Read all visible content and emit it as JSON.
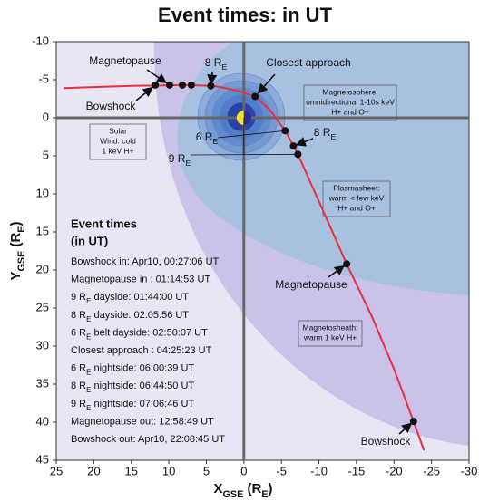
{
  "chart_data": {
    "type": "trajectory",
    "title": "Event times: in UT",
    "xlabel": [
      {
        "text": "X"
      },
      {
        "text": "GSE",
        "sub": true
      },
      {
        "text": " (R"
      },
      {
        "text": "E",
        "sub": true
      },
      {
        "text": ")"
      }
    ],
    "ylabel": [
      {
        "text": "Y"
      },
      {
        "text": "GSE",
        "sub": true
      },
      {
        "text": " (R"
      },
      {
        "text": "E",
        "sub": true
      },
      {
        "text": ")"
      }
    ],
    "xlim": [
      25,
      -30
    ],
    "ylim": [
      -10,
      45
    ],
    "xticks": [
      25,
      20,
      15,
      10,
      5,
      0,
      -5,
      -10,
      -15,
      -20,
      -25,
      -30
    ],
    "yticks": [
      -10,
      -5,
      0,
      5,
      10,
      15,
      20,
      25,
      30,
      35,
      40,
      45
    ],
    "trajectory": {
      "color": "#e8303a",
      "x": [
        24,
        15,
        8,
        4,
        1,
        -1.5,
        -3.5,
        -5.5,
        -7.2,
        -10,
        -13.7,
        -17,
        -20,
        -22.6,
        -24
      ],
      "y": [
        -3.9,
        -4.2,
        -4.3,
        -4.2,
        -3.6,
        -2.8,
        -1,
        1.7,
        4.8,
        11,
        19.2,
        26,
        33,
        39.9,
        43.7
      ]
    },
    "events": {
      "color": "#111111",
      "x": [
        11.8,
        9.9,
        8.2,
        7.0,
        4.4,
        -1.5,
        -5.5,
        -6.6,
        -7.2,
        -13.7,
        -22.6
      ],
      "y": [
        -4.3,
        -4.3,
        -4.3,
        -4.3,
        -4.2,
        -2.8,
        1.7,
        3.7,
        4.8,
        19.2,
        39.9
      ]
    },
    "regions": [
      {
        "lines": [
          "Solar",
          "Wind: cold",
          "1 keV H+"
        ]
      },
      {
        "lines": [
          "Magnetosphere:",
          "omnidirectional 1-10s keV",
          "H+ and O+"
        ]
      },
      {
        "lines": [
          "Plasmasheet:",
          "warm < few keV",
          "H+ and O+"
        ]
      },
      {
        "lines": [
          "Magnetosheath:",
          "warm 1 keV H+"
        ]
      }
    ],
    "annotations": [
      [
        {
          "text": "Magnetopause"
        }
      ],
      [
        {
          "text": "Bowshock"
        }
      ],
      [
        {
          "text": "8 R"
        },
        {
          "text": "E",
          "sub": true
        }
      ],
      [
        {
          "text": "Closest approach"
        }
      ],
      [
        {
          "text": "6 R"
        },
        {
          "text": "E",
          "sub": true
        }
      ],
      [
        {
          "text": "8 R"
        },
        {
          "text": "E",
          "sub": true
        }
      ],
      [
        {
          "text": "9 R"
        },
        {
          "text": "E",
          "sub": true
        }
      ],
      [
        {
          "text": "Magnetopause"
        }
      ],
      [
        {
          "text": "Bowshock"
        }
      ]
    ],
    "event_times": {
      "title": [
        "Event times",
        "(in UT)"
      ],
      "items": [
        [
          {
            "text": "Bowshock in: Apr10, 00:27:06 UT"
          }
        ],
        [
          {
            "text": "Magnetopause in : 01:14:53 UT"
          }
        ],
        [
          {
            "text": "9 R"
          },
          {
            "text": "E",
            "sub": true
          },
          {
            "text": " dayside: 01:44:00 UT"
          }
        ],
        [
          {
            "text": "8 R"
          },
          {
            "text": "E",
            "sub": true
          },
          {
            "text": " dayside: 02:05:56 UT"
          }
        ],
        [
          {
            "text": "6 R"
          },
          {
            "text": "E",
            "sub": true
          },
          {
            "text": " belt dayside: 02:50:07 UT"
          }
        ],
        [
          {
            "text": "Closest approach : 04:25:23 UT"
          }
        ],
        [
          {
            "text": "6 R"
          },
          {
            "text": "E",
            "sub": true
          },
          {
            "text": " nightside: 06:00:39 UT"
          }
        ],
        [
          {
            "text": "8 R"
          },
          {
            "text": "E",
            "sub": true
          },
          {
            "text": " nightside: 06:44:50 UT"
          }
        ],
        [
          {
            "text": "9 R"
          },
          {
            "text": "E",
            "sub": true
          },
          {
            "text": " nightside: 07:06:46 UT"
          }
        ],
        [
          {
            "text": "Magnetopause out: 12:58:49 UT"
          }
        ],
        [
          {
            "text": "Bowshock out: Apr10, 22:08:45 UT"
          }
        ]
      ]
    }
  }
}
